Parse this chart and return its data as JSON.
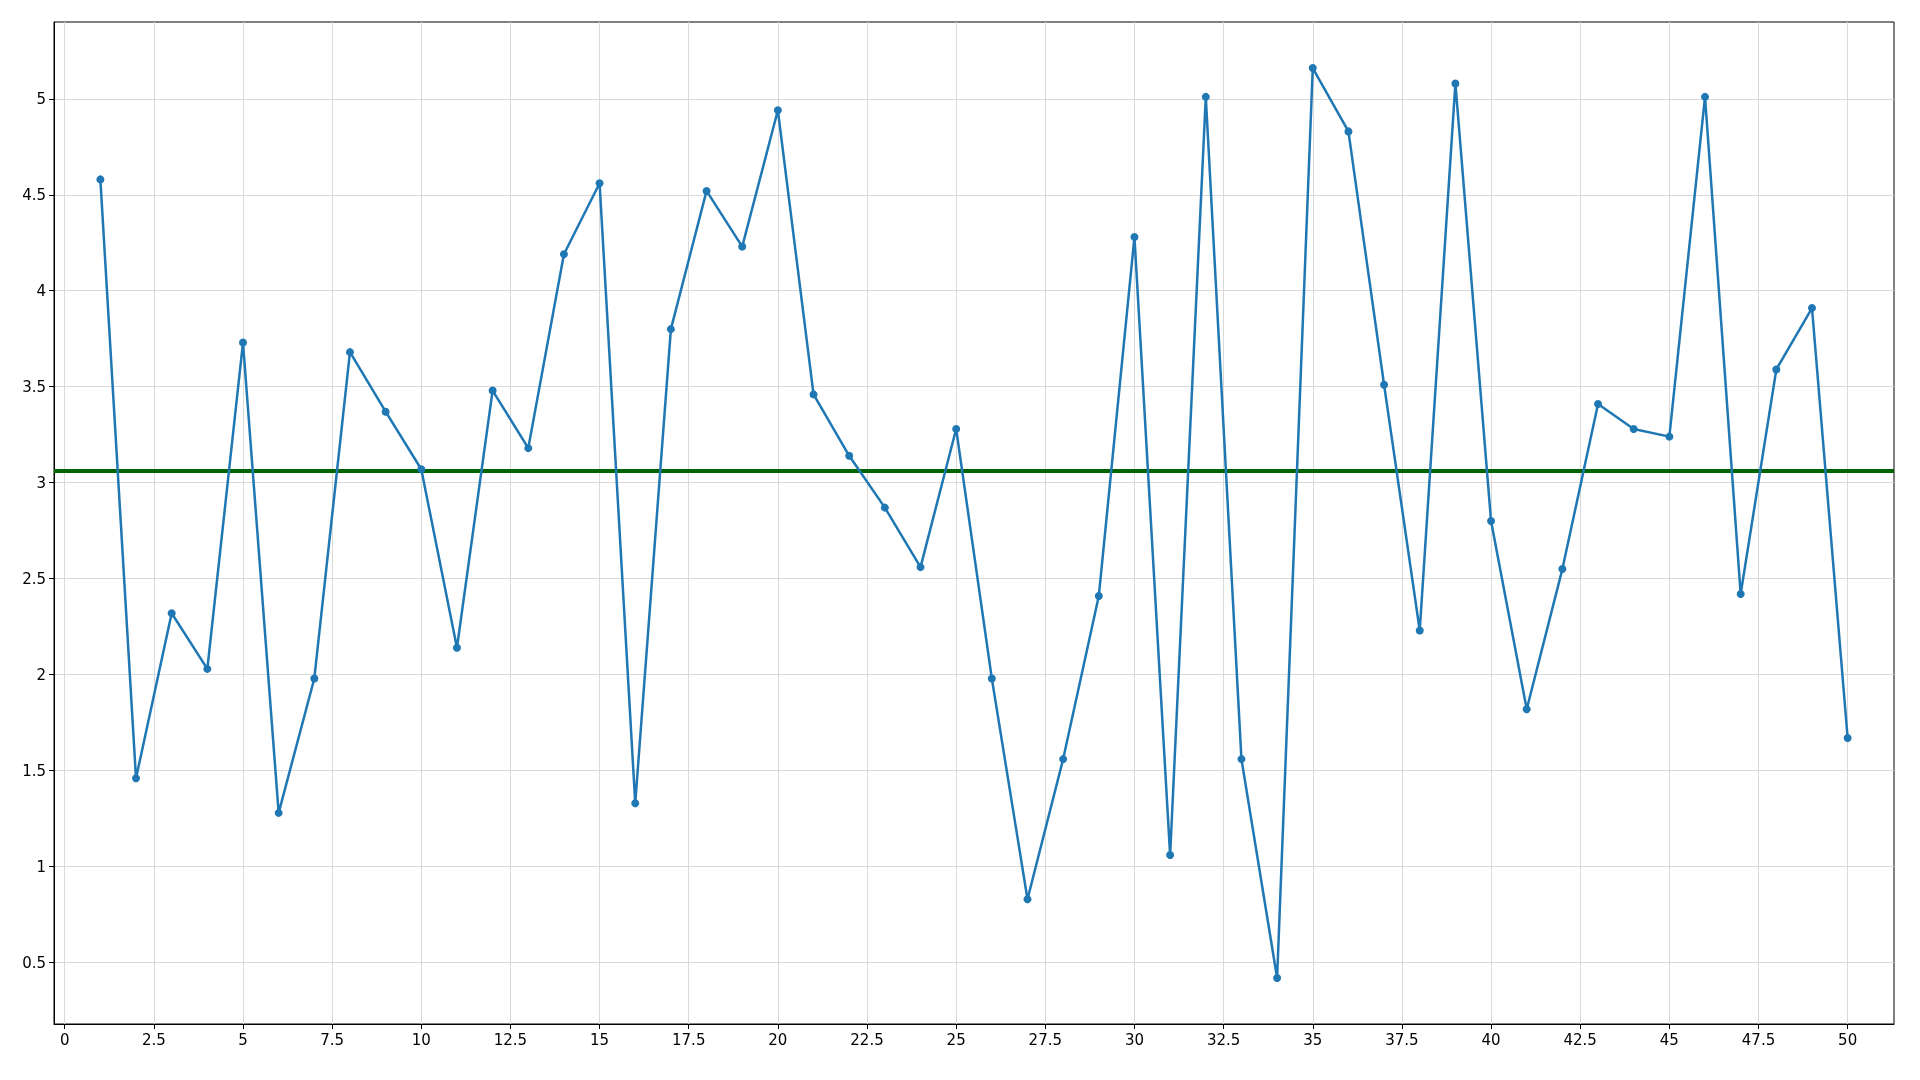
{
  "chart_data": {
    "type": "line",
    "x": [
      1,
      2,
      3,
      4,
      5,
      6,
      7,
      8,
      9,
      10,
      11,
      12,
      13,
      14,
      15,
      16,
      17,
      18,
      19,
      20,
      21,
      22,
      23,
      24,
      25,
      26,
      27,
      28,
      29,
      30,
      31,
      32,
      33,
      34,
      35,
      36,
      37,
      38,
      39,
      40,
      41,
      42,
      43,
      44,
      45,
      46,
      47,
      48,
      49,
      50
    ],
    "series": [
      {
        "color": "#1f77b4",
        "values": [
          4.58,
          1.46,
          2.32,
          2.03,
          3.73,
          1.28,
          1.98,
          3.68,
          3.37,
          3.07,
          2.14,
          3.48,
          3.18,
          4.19,
          4.56,
          1.33,
          3.8,
          4.52,
          4.23,
          4.94,
          3.46,
          3.14,
          2.87,
          2.56,
          3.28,
          1.98,
          0.83,
          1.56,
          2.41,
          4.28,
          1.06,
          5.01,
          1.56,
          0.42,
          5.16,
          4.83,
          3.51,
          2.23,
          5.08,
          2.8,
          1.82,
          2.55,
          3.41,
          3.28,
          3.24,
          5.01,
          2.42,
          3.59,
          3.91,
          1.67
        ]
      }
    ],
    "ref_lines": [
      {
        "axis": "y",
        "value": 3.06,
        "color": "#006400"
      }
    ],
    "xlim": [
      -0.3,
      51.3
    ],
    "xticks": [
      0,
      2.5,
      5,
      7.5,
      10,
      12.5,
      15,
      17.5,
      20,
      22.5,
      25,
      27.5,
      30,
      32.5,
      35,
      37.5,
      40,
      42.5,
      45,
      47.5,
      50
    ],
    "ylim": [
      0.18,
      5.4
    ],
    "yticks": [
      0.5,
      1,
      1.5,
      2,
      2.5,
      3,
      3.5,
      4,
      4.5,
      5
    ],
    "grid": true,
    "marker": "circle",
    "line_style": "solid"
  }
}
